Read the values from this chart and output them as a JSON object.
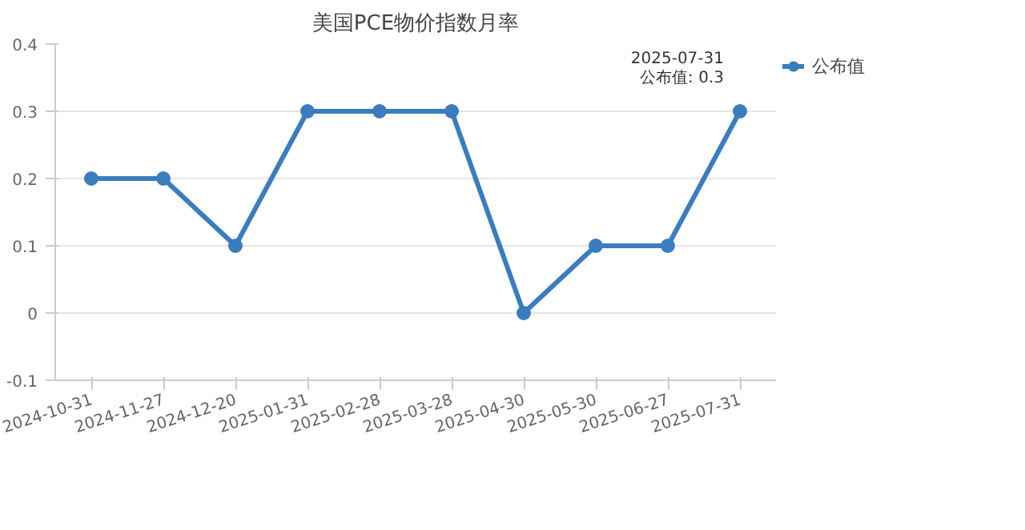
{
  "chart_data": {
    "type": "line",
    "title": "美国PCE物价指数月率",
    "categories": [
      "2024-10-31",
      "2024-11-27",
      "2024-12-20",
      "2025-01-31",
      "2025-02-28",
      "2025-03-28",
      "2025-04-30",
      "2025-05-30",
      "2025-06-27",
      "2025-07-31"
    ],
    "series": [
      {
        "name": "公布值",
        "color": "#3a7dbf",
        "values": [
          0.2,
          0.2,
          0.1,
          0.3,
          0.3,
          0.3,
          0,
          0.1,
          0.1,
          0.3
        ]
      }
    ],
    "ylim": [
      -0.1,
      0.4
    ],
    "yticks": [
      -0.1,
      0,
      0.1,
      0.2,
      0.3,
      0.4
    ],
    "grid": "y",
    "legend": "right",
    "marker": "circle",
    "line_style": "solid",
    "annotations": [
      {
        "text": "2025-07-31\n公布值: 0.3",
        "x": "2025-07-31",
        "y": 0.3
      }
    ]
  }
}
